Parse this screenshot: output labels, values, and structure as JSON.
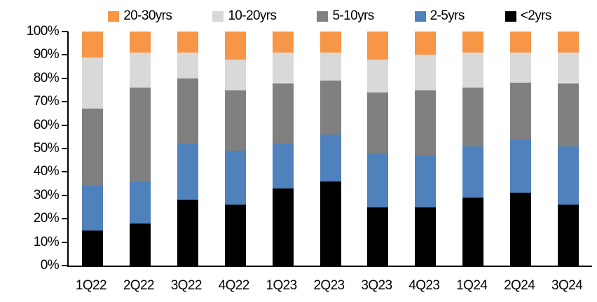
{
  "chart_data": {
    "type": "bar",
    "stacked": true,
    "normalized_100_percent": true,
    "title": "",
    "xlabel": "",
    "ylabel": "",
    "grid": false,
    "legend_position": "top",
    "ylim": [
      0,
      100
    ],
    "ytick_step": 10,
    "ytick_labels": [
      "100%",
      "90%",
      "80%",
      "70%",
      "60%",
      "50%",
      "40%",
      "30%",
      "20%",
      "10%",
      "0%"
    ],
    "categories": [
      "1Q22",
      "2Q22",
      "3Q22",
      "4Q22",
      "1Q23",
      "2Q23",
      "3Q23",
      "4Q23",
      "1Q24",
      "2Q24",
      "3Q24"
    ],
    "series": [
      {
        "name": "<2yrs",
        "color": "#000000",
        "values": [
          15,
          18,
          28,
          26,
          33,
          36,
          25,
          25,
          29,
          31,
          26
        ]
      },
      {
        "name": "2-5yrs",
        "color": "#4F81BD",
        "values": [
          19,
          18,
          24,
          23,
          19,
          20,
          23,
          22,
          22,
          23,
          25
        ]
      },
      {
        "name": "5-10yrs",
        "color": "#808080",
        "values": [
          33,
          40,
          28,
          26,
          26,
          23,
          26,
          28,
          25,
          24,
          27
        ]
      },
      {
        "name": "10-20yrs",
        "color": "#D9D9D9",
        "values": [
          22,
          15,
          11,
          13,
          13,
          12,
          14,
          15,
          15,
          13,
          13
        ]
      },
      {
        "name": "20-30yrs",
        "color": "#F79646",
        "values": [
          11,
          9,
          9,
          12,
          9,
          9,
          12,
          10,
          9,
          9,
          9
        ]
      }
    ],
    "legend_order": [
      "20-30yrs",
      "10-20yrs",
      "5-10yrs",
      "2-5yrs",
      "<2yrs"
    ],
    "axis_color": "#000000",
    "background_color": "#FFFFFF"
  }
}
